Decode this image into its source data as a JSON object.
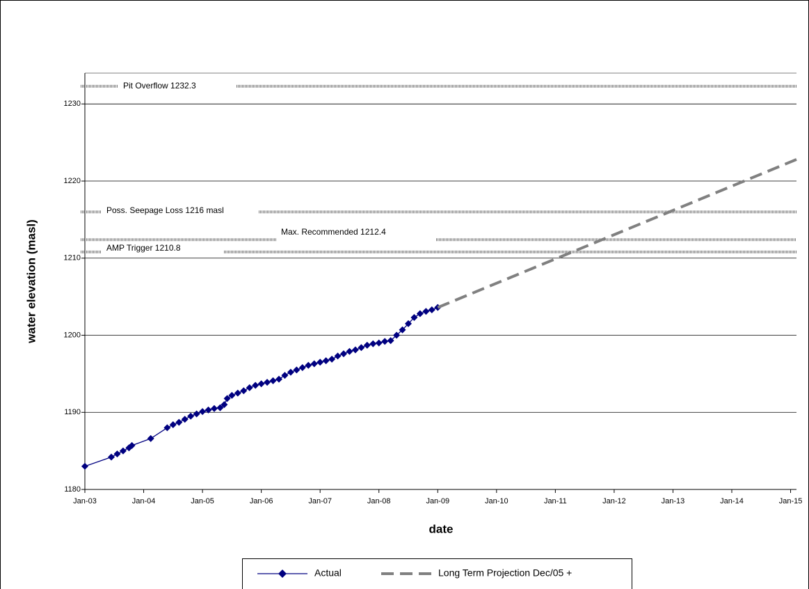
{
  "chart_data": {
    "type": "line",
    "x_label": "date",
    "y_label": "water elevation (masl)",
    "xlim": [
      2003,
      2015.1
    ],
    "ylim": [
      1180,
      1234
    ],
    "xticks": [
      {
        "value": 2003,
        "label": "Jan-03"
      },
      {
        "value": 2004,
        "label": "Jan-04"
      },
      {
        "value": 2005,
        "label": "Jan-05"
      },
      {
        "value": 2006,
        "label": "Jan-06"
      },
      {
        "value": 2007,
        "label": "Jan-07"
      },
      {
        "value": 2008,
        "label": "Jan-08"
      },
      {
        "value": 2009,
        "label": "Jan-09"
      },
      {
        "value": 2010,
        "label": "Jan-10"
      },
      {
        "value": 2011,
        "label": "Jan-11"
      },
      {
        "value": 2012,
        "label": "Jan-12"
      },
      {
        "value": 2013,
        "label": "Jan-13"
      },
      {
        "value": 2014,
        "label": "Jan-14"
      },
      {
        "value": 2015,
        "label": "Jan-15"
      }
    ],
    "yticks": [
      1180,
      1190,
      1200,
      1210,
      1220,
      1230
    ],
    "grid": true,
    "series": [
      {
        "name": "Actual",
        "color": "#000080",
        "marker": "diamond",
        "dashed": false,
        "x": [
          2003.0,
          2003.45,
          2003.55,
          2003.65,
          2003.75,
          2003.8,
          2004.12,
          2004.4,
          2004.5,
          2004.6,
          2004.7,
          2004.8,
          2004.9,
          2005.0,
          2005.1,
          2005.2,
          2005.3,
          2005.37,
          2005.42,
          2005.5,
          2005.6,
          2005.7,
          2005.8,
          2005.9,
          2006.0,
          2006.1,
          2006.2,
          2006.3,
          2006.4,
          2006.5,
          2006.6,
          2006.7,
          2006.8,
          2006.9,
          2007.0,
          2007.1,
          2007.2,
          2007.3,
          2007.4,
          2007.5,
          2007.6,
          2007.7,
          2007.8,
          2007.9,
          2008.0,
          2008.1,
          2008.2,
          2008.3,
          2008.4,
          2008.5,
          2008.6,
          2008.7,
          2008.8,
          2008.9,
          2009.0
        ],
        "values": [
          1183.0,
          1184.2,
          1184.6,
          1185.0,
          1185.4,
          1185.7,
          1186.6,
          1188.0,
          1188.4,
          1188.7,
          1189.1,
          1189.5,
          1189.8,
          1190.1,
          1190.3,
          1190.5,
          1190.6,
          1191.0,
          1191.8,
          1192.2,
          1192.5,
          1192.8,
          1193.2,
          1193.5,
          1193.7,
          1193.9,
          1194.1,
          1194.3,
          1194.8,
          1195.2,
          1195.5,
          1195.8,
          1196.1,
          1196.3,
          1196.5,
          1196.7,
          1196.9,
          1197.3,
          1197.6,
          1197.9,
          1198.1,
          1198.4,
          1198.7,
          1198.9,
          1199.0,
          1199.2,
          1199.3,
          1200.0,
          1200.7,
          1201.5,
          1202.3,
          1202.8,
          1203.1,
          1203.3,
          1203.6
        ]
      },
      {
        "name": "Long Term Projection Dec/05 +",
        "color": "#808080",
        "dashed": true,
        "x": [
          2009.0,
          2015.1
        ],
        "values": [
          1203.6,
          1222.8
        ]
      }
    ],
    "thresholds": [
      {
        "label": "Pit Overflow 1232.3",
        "value": 1232.3
      },
      {
        "label": "Poss. Seepage Loss 1216 masl",
        "value": 1216
      },
      {
        "label": "Max. Recommended 1212.4",
        "value": 1212.4
      },
      {
        "label": "AMP Trigger 1210.8",
        "value": 1210.8
      }
    ]
  }
}
